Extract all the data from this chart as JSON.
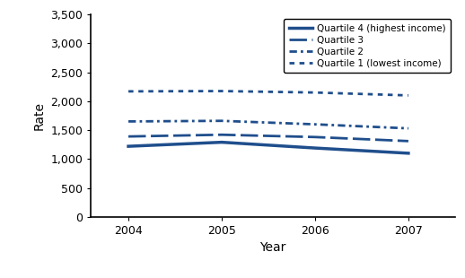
{
  "years": [
    2004,
    2005,
    2006,
    2007
  ],
  "quartile4": [
    1220,
    1290,
    1190,
    1100
  ],
  "quartile3": [
    1390,
    1420,
    1380,
    1310
  ],
  "quartile2": [
    1650,
    1660,
    1600,
    1530
  ],
  "quartile1": [
    2170,
    2175,
    2150,
    2100
  ],
  "line_color": "#1f4e8c",
  "xlabel": "Year",
  "ylabel": "Rate",
  "ylim": [
    0,
    3500
  ],
  "yticks": [
    0,
    500,
    1000,
    1500,
    2000,
    2500,
    3000,
    3500
  ],
  "xlim": [
    2003.6,
    2007.5
  ],
  "legend_labels": [
    "Quartile 4 (highest income)",
    "Quartile 3",
    "Quartile 2",
    "Quartile 1 (lowest income)"
  ]
}
